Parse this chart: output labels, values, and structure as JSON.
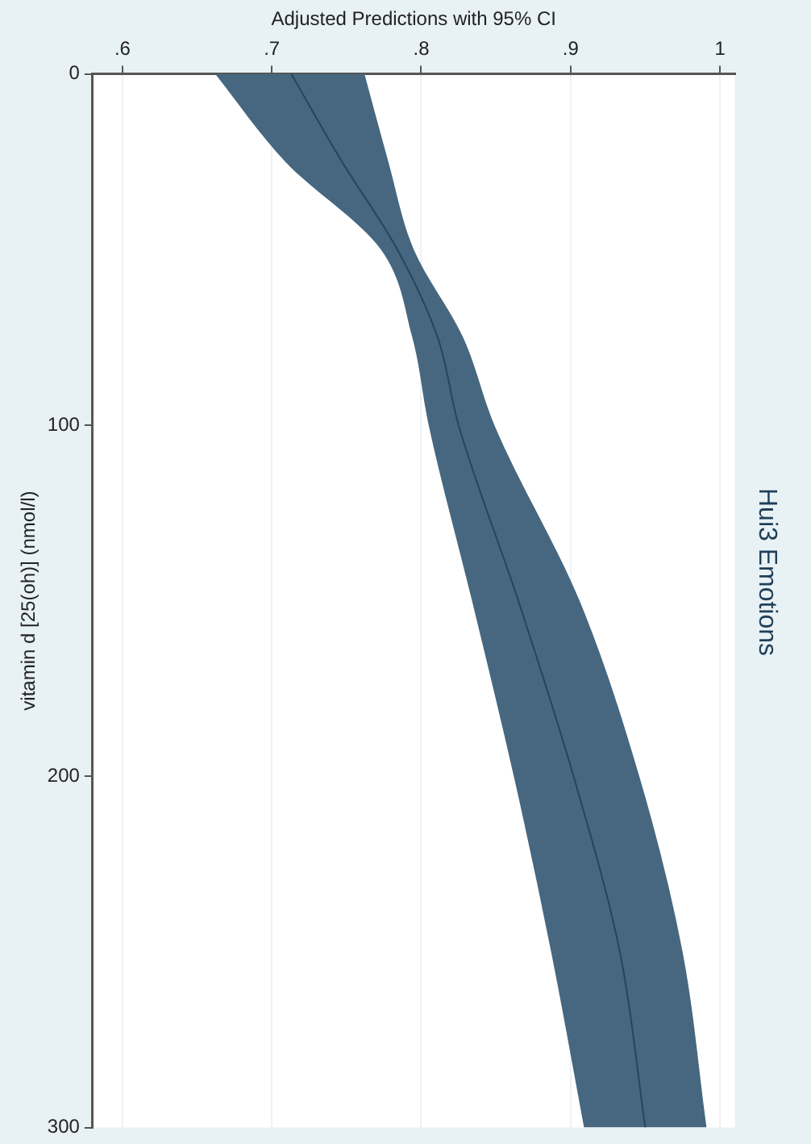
{
  "chart_data": {
    "type": "line",
    "orientation": "horizontal",
    "title": "Hui3 Emotions",
    "xlabel": "Adjusted Predictions with 95% CI",
    "ylabel": "vitamin d [25(oh)] (nmol/l)",
    "x": [
      0,
      25,
      50,
      75,
      100,
      150,
      200,
      250,
      300
    ],
    "series": [
      {
        "color": "#46677f",
        "values": [
          0.713,
          0.747,
          0.784,
          0.811,
          0.825,
          0.865,
          0.902,
          0.933,
          0.95
        ],
        "lower": [
          0.662,
          0.709,
          0.773,
          0.794,
          0.805,
          0.834,
          0.862,
          0.887,
          0.909
        ],
        "upper": [
          0.762,
          0.778,
          0.795,
          0.828,
          0.849,
          0.906,
          0.946,
          0.975,
          0.991
        ]
      }
    ],
    "xlim": [
      0.58,
      1.01
    ],
    "xticks": [
      {
        "value": 0.6,
        "label": ".6"
      },
      {
        "value": 0.7,
        "label": ".7"
      },
      {
        "value": 0.8,
        "label": ".8"
      },
      {
        "value": 0.9,
        "label": ".9"
      },
      1
    ],
    "ylim": [
      300,
      0
    ],
    "yticks": [
      0,
      100,
      200,
      300
    ],
    "grid": "x",
    "legend": false
  }
}
